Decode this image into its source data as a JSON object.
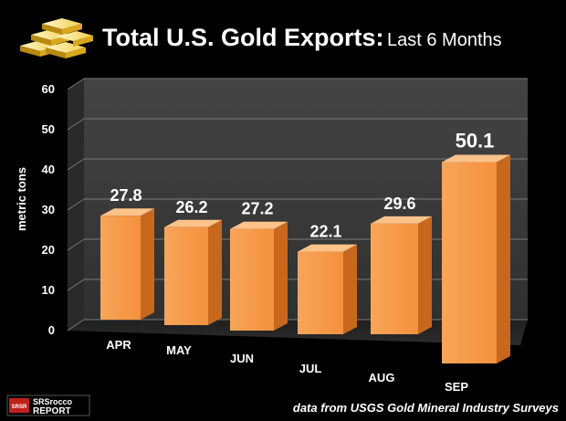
{
  "header": {
    "title": "Total U.S. Gold Exports:",
    "subtitle": "Last 6 Months"
  },
  "chart_data": {
    "type": "bar",
    "categories": [
      "APR",
      "MAY",
      "JUN",
      "JUL",
      "AUG",
      "SEP"
    ],
    "values": [
      27.8,
      26.2,
      27.2,
      22.1,
      29.6,
      50.1
    ],
    "ylabel": "metric tons",
    "ylim": [
      0,
      60
    ],
    "yticks": [
      0,
      10,
      20,
      30,
      40,
      50,
      60
    ],
    "grid": true,
    "bar_color": "#f59a4a",
    "style": "3d"
  },
  "footer": {
    "source": "data from USGS Gold Mineral Industry Surveys",
    "logo_text_top": "SRSrocco",
    "logo_text_bottom": "REPORT",
    "logo_badge": "SRSR"
  },
  "colors": {
    "background": "#000000",
    "bar_front": "#f59a4a",
    "bar_side": "#c8681e",
    "bar_top": "#fbc38a",
    "wall": "#3a3a3a",
    "gold": "#e8b923"
  }
}
